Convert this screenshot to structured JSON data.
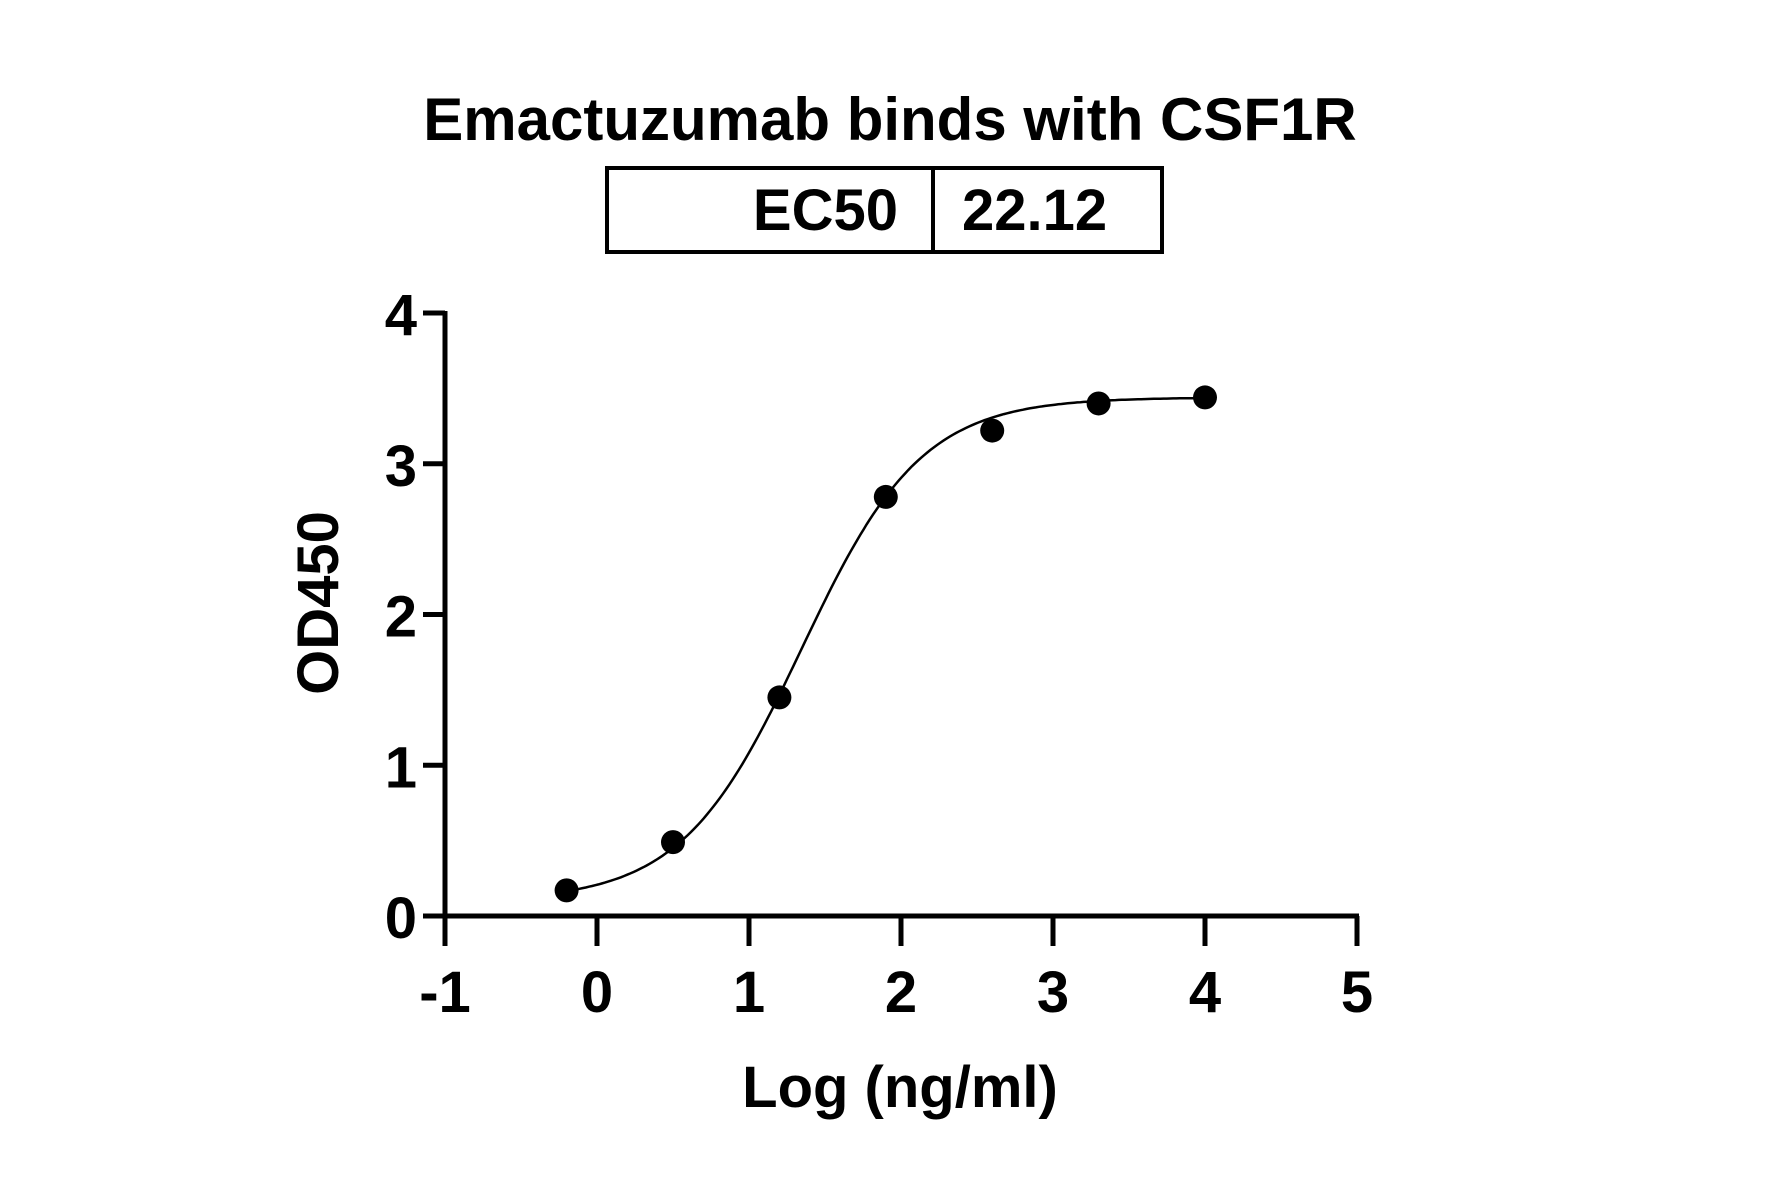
{
  "chart_data": {
    "type": "scatter",
    "title": "Emactuzumab binds with CSF1R",
    "ec50_table": {
      "label": "EC50",
      "value": "22.12"
    },
    "xlabel": "Log (ng/ml)",
    "ylabel": "OD450",
    "xlim": [
      -1,
      5
    ],
    "ylim": [
      0,
      4
    ],
    "x_ticks": [
      "-1",
      "0",
      "1",
      "2",
      "3",
      "4",
      "5"
    ],
    "y_ticks": [
      "0",
      "1",
      "2",
      "3",
      "4"
    ],
    "grid": false,
    "points": [
      {
        "x": -0.2,
        "y": 0.17
      },
      {
        "x": 0.5,
        "y": 0.49
      },
      {
        "x": 1.2,
        "y": 1.45
      },
      {
        "x": 1.9,
        "y": 2.78
      },
      {
        "x": 2.6,
        "y": 3.22
      },
      {
        "x": 3.3,
        "y": 3.4
      },
      {
        "x": 4.0,
        "y": 3.44
      }
    ],
    "fit_curve": {
      "model": "4PL",
      "bottom": 0.1,
      "top": 3.44,
      "logEC50": 1.345,
      "hill": 1.1
    },
    "colors": {
      "marks": "#000000",
      "background": "#ffffff"
    }
  }
}
